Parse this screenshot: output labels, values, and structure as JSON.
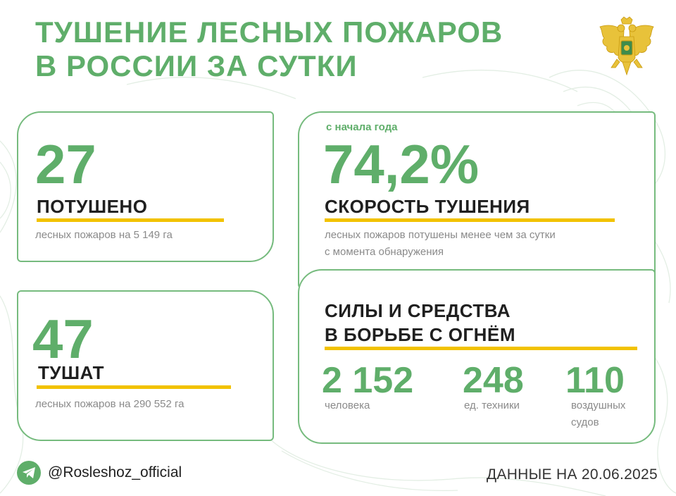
{
  "header": {
    "title_line1": "ТУШЕНИЕ ЛЕСНЫХ ПОЖАРОВ",
    "title_line2": "В РОССИИ ЗА СУТКИ"
  },
  "extinguished": {
    "value": "27",
    "label": "ПОТУШЕНО",
    "desc": "лесных пожаров на 5 149 га"
  },
  "active": {
    "value": "47",
    "label": "ТУШАТ",
    "desc": "лесных пожаров на 290 552 га"
  },
  "speed": {
    "since": "с начала года",
    "value": "74,2%",
    "label": "СКОРОСТЬ ТУШЕНИЯ",
    "desc_line1": "лесных пожаров потушены менее чем за сутки",
    "desc_line2": "с момента обнаружения"
  },
  "forces": {
    "title_line1": "СИЛЫ И СРЕДСТВА",
    "title_line2": "В БОРЬБЕ С ОГНЁМ",
    "stats": [
      {
        "value": "2 152",
        "desc_line1": "человека",
        "desc_line2": ""
      },
      {
        "value": "248",
        "desc_line1": "ед. техники",
        "desc_line2": ""
      },
      {
        "value": "110",
        "desc_line1": "воздушных",
        "desc_line2": "судов"
      }
    ]
  },
  "footer": {
    "handle": "@Rosleshoz_official",
    "date": "ДАННЫЕ НА 20.06.2025"
  },
  "colors": {
    "accent_green": "#5fae6a",
    "border_green": "#76bb7e",
    "accent_yellow": "#f2c200"
  },
  "icons": [
    "telegram-icon",
    "emblem-icon"
  ]
}
